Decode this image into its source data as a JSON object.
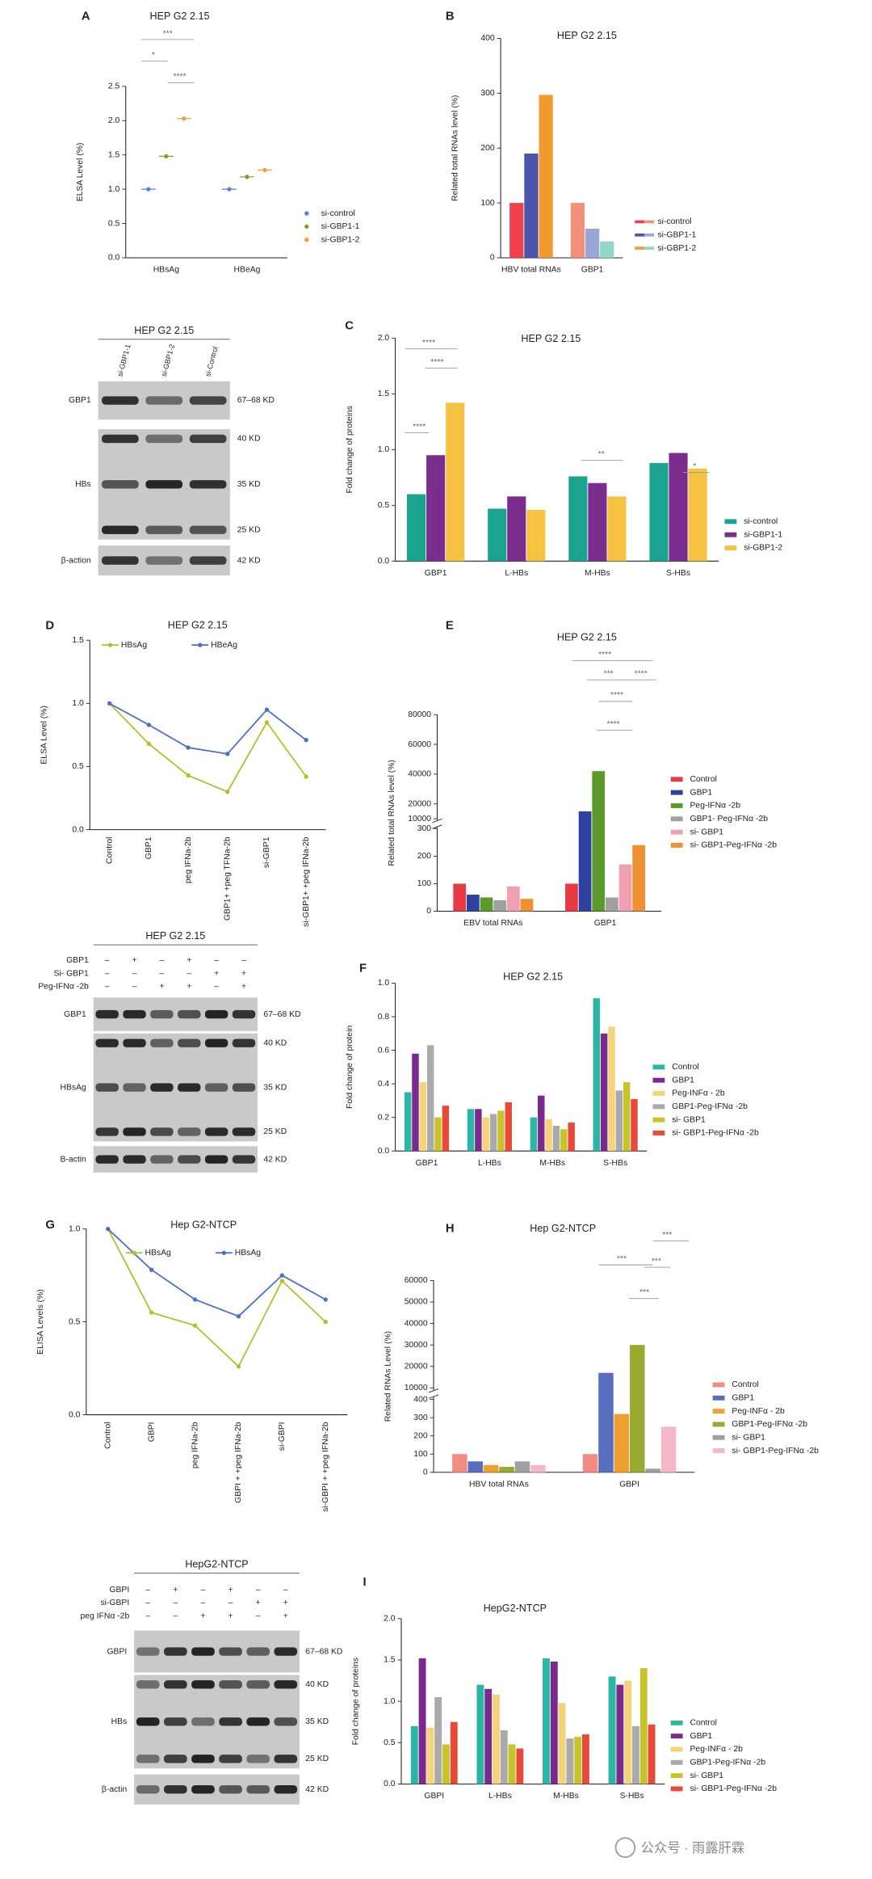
{
  "chart_data": [
    {
      "panel": "A",
      "type": "strip",
      "title": "HEP G2 2.15",
      "ylabel": "ELSA Level (%)",
      "categories": [
        "HBsAg",
        "HBeAg"
      ],
      "series": [
        {
          "name": "si-control",
          "color": "#5b7fd6",
          "values": [
            1.0,
            1.0
          ]
        },
        {
          "name": "si-GBP1-1",
          "color": "#8a9a2a",
          "values": [
            1.48,
            1.18
          ]
        },
        {
          "name": "si-GBP1-2",
          "color": "#f0a040",
          "values": [
            2.03,
            1.28
          ]
        }
      ],
      "ylim": [
        0,
        2.5
      ],
      "yticks": [
        {
          "value": 0,
          "label": "0.0"
        },
        0.5,
        {
          "value": 1,
          "label": "1.0"
        },
        1.5,
        {
          "value": 2,
          "label": "2.0"
        },
        2.5
      ],
      "annotations": [
        "***",
        "*",
        "****"
      ]
    },
    {
      "panel": "B",
      "type": "bar",
      "title": "HEP G2 2.15",
      "ylabel": "Related total RNAs level (%)",
      "categories": [
        "HBV total RNAs",
        "GBP1"
      ],
      "series": [
        {
          "name": "si-control",
          "colors": [
            "#f0404a",
            "#f4907a"
          ],
          "values": [
            100,
            100
          ]
        },
        {
          "name": "si-GBP1-1",
          "colors": [
            "#4a55a8",
            "#9aa6d8"
          ],
          "values": [
            190,
            53
          ]
        },
        {
          "name": "si-GBP1-2",
          "colors": [
            "#f29a30",
            "#8fd8c8"
          ],
          "values": [
            297,
            30
          ]
        }
      ],
      "ylim": [
        0,
        400
      ],
      "yticks": [
        0,
        100,
        200,
        300,
        400
      ]
    },
    {
      "panel": "C",
      "type": "bar",
      "title": "HEP G2 2.15",
      "ylabel": "Fold change of proteins",
      "categories": [
        "GBP1",
        "L-HBs",
        "M-HBs",
        "S-HBs"
      ],
      "series": [
        {
          "name": "si-control",
          "color": "#1aa38f",
          "values": [
            0.6,
            0.47,
            0.76,
            0.88
          ]
        },
        {
          "name": "si-GBP1-1",
          "color": "#7b2d8e",
          "values": [
            0.95,
            0.58,
            0.7,
            0.97
          ]
        },
        {
          "name": "si-GBP1-2",
          "color": "#f5c242",
          "values": [
            1.42,
            0.46,
            0.58,
            0.83
          ]
        }
      ],
      "ylim": [
        0,
        2
      ],
      "yticks": [
        {
          "value": 0,
          "label": "0.0"
        },
        0.5,
        {
          "value": 1,
          "label": "1.0"
        },
        1.5,
        {
          "value": 2,
          "label": "2.0"
        }
      ],
      "annotations": [
        "****",
        "****",
        "****",
        "**",
        "*"
      ]
    },
    {
      "panel": "D",
      "type": "line",
      "title": "HEP G2 2.15",
      "ylabel": "ELSA Level (%)",
      "x_label_rotation": 90,
      "categories": [
        "Control",
        "GBP1",
        "peg IFNa-2b",
        "GBP1+ +peg TFNa-2b",
        "si-GBP1",
        "si-GBP1+ +peg IFNa-2b"
      ],
      "series": [
        {
          "name": "HBsAg",
          "color": "#b5bf2a",
          "values": [
            1.0,
            0.68,
            0.43,
            0.3,
            0.85,
            0.42
          ]
        },
        {
          "name": "HBeAg",
          "color": "#4a6fc8",
          "values": [
            1.0,
            0.83,
            0.65,
            0.6,
            0.95,
            0.71
          ]
        }
      ],
      "ylim": [
        0,
        1.5
      ],
      "yticks": [
        {
          "value": 0,
          "label": "0.0"
        },
        0.5,
        {
          "value": 1,
          "label": "1.0"
        },
        1.5
      ]
    },
    {
      "panel": "E",
      "type": "bar",
      "title": "HEP G2 2.15",
      "ylabel": "Related total RNAs level (%)",
      "categories": [
        "EBV total RNAs",
        "GBP1"
      ],
      "series": [
        {
          "name": "Control",
          "color": "#e83a44",
          "values": [
            100,
            100
          ]
        },
        {
          "name": "GBP1",
          "color": "#3040a0",
          "values": [
            60,
            15000
          ]
        },
        {
          "name": "Peg-IFNα -2b",
          "color": "#5a9a2a",
          "values": [
            50,
            42000
          ]
        },
        {
          "name": "GBP1- Peg-IFNα -2b",
          "color": "#a0a0a0",
          "values": [
            40,
            50
          ]
        },
        {
          "name": "si- GBP1",
          "color": "#f0a0b0",
          "values": [
            90,
            170
          ]
        },
        {
          "name": "si- GBP1-Peg-IFNα -2b",
          "color": "#f09030",
          "values": [
            45,
            240
          ]
        }
      ],
      "ylims": [
        [
          0,
          300
        ],
        [
          10000,
          80000
        ]
      ],
      "yticks": [
        0,
        100,
        200,
        300,
        10000,
        20000,
        40000,
        60000,
        80000
      ],
      "annotations": [
        "****",
        "***",
        "****",
        "****",
        "****"
      ]
    },
    {
      "panel": "F",
      "type": "bar",
      "title": "HEP G2 2.15",
      "ylabel": "Fold change of protein",
      "categories": [
        "GBP1",
        "L-HBs",
        "M-HBs",
        "S-HBs"
      ],
      "series": [
        {
          "name": "Control",
          "color": "#2ab5a5",
          "values": [
            0.35,
            0.25,
            0.2,
            0.91
          ]
        },
        {
          "name": "GBP1",
          "color": "#7a2a8e",
          "values": [
            0.58,
            0.25,
            0.33,
            0.7
          ]
        },
        {
          "name": "Peg-INFα - 2b",
          "color": "#f5d37a",
          "values": [
            0.41,
            0.2,
            0.19,
            0.74
          ]
        },
        {
          "name": "GBP1-Peg-IFNα -2b",
          "color": "#aaaaaa",
          "values": [
            0.63,
            0.22,
            0.15,
            0.36
          ]
        },
        {
          "name": "si- GBP1",
          "color": "#c6c42a",
          "values": [
            0.2,
            0.24,
            0.13,
            0.41
          ]
        },
        {
          "name": "si- GBP1-Peg-IFNα -2b",
          "color": "#e84a3a",
          "values": [
            0.27,
            0.29,
            0.17,
            0.31
          ]
        }
      ],
      "ylim": [
        0,
        1
      ],
      "yticks": [
        {
          "value": 0,
          "label": "0.0"
        },
        0.2,
        0.4,
        0.6,
        0.8,
        {
          "value": 1,
          "label": "1.0"
        }
      ]
    },
    {
      "panel": "G",
      "type": "line",
      "title": "Hep G2-NTCP",
      "ylabel": "ELISA Levels (%)",
      "x_label_rotation": 90,
      "categories": [
        "Control",
        "GBPI",
        "peg IFNa-2b",
        "GBPI + +peg IFNa-2b",
        "si-GBPI",
        "si-GBPI + +peg IFNa-2b"
      ],
      "series": [
        {
          "name": "HBsAg",
          "color": "#b5bf2a",
          "values": [
            1.0,
            0.55,
            0.48,
            0.26,
            0.72,
            0.5
          ]
        },
        {
          "name": "HBsAg",
          "color": "#4a6fc8",
          "values": [
            1.0,
            0.78,
            0.62,
            0.53,
            0.75,
            0.62
          ]
        }
      ],
      "ylim": [
        0,
        1
      ],
      "yticks": [
        {
          "value": 0,
          "label": "0.0"
        },
        0.5,
        {
          "value": 1,
          "label": "1.0"
        }
      ]
    },
    {
      "panel": "H",
      "type": "bar",
      "title": "Hep G2-NTCP",
      "ylabel": "Related RNAs Level (%)",
      "categories": [
        "HBV total RNAs",
        "GBPI"
      ],
      "series": [
        {
          "name": "Control",
          "color": "#f28b82",
          "values": [
            100,
            100
          ]
        },
        {
          "name": "GBP1",
          "color": "#5a6ec0",
          "values": [
            60,
            17000
          ]
        },
        {
          "name": "Peg-INFα - 2b",
          "color": "#f0a030",
          "values": [
            40,
            320
          ]
        },
        {
          "name": "GBP1-Peg-IFNα -2b",
          "color": "#9aaa30",
          "values": [
            30,
            30000
          ]
        },
        {
          "name": "si- GBP1",
          "color": "#a0a0a0",
          "values": [
            60,
            20
          ]
        },
        {
          "name": "si- GBP1-Peg-IFNα -2b",
          "color": "#f5b8c8",
          "values": [
            40,
            250
          ]
        }
      ],
      "ylims": [
        [
          0,
          400
        ],
        [
          10000,
          60000
        ]
      ],
      "yticks": [
        0,
        100,
        200,
        300,
        400,
        10000,
        20000,
        30000,
        40000,
        50000,
        60000
      ],
      "annotations": [
        "***",
        "***",
        "***",
        "***"
      ]
    },
    {
      "panel": "I",
      "type": "bar",
      "title": "HepG2-NTCP",
      "ylabel": "Fold change of proteins",
      "categories": [
        "GBPI",
        "L-HBs",
        "M-HBs",
        "S-HBs"
      ],
      "series": [
        {
          "name": "Control",
          "color": "#2ab5a5",
          "values": [
            0.7,
            1.2,
            1.52,
            1.3
          ]
        },
        {
          "name": "GBP1",
          "color": "#7a2a8e",
          "values": [
            1.52,
            1.15,
            1.48,
            1.2
          ]
        },
        {
          "name": "Peg-INFα - 2b",
          "color": "#f5d37a",
          "values": [
            0.68,
            1.08,
            0.98,
            1.25
          ]
        },
        {
          "name": "GBP1-Peg-IFNα -2b",
          "color": "#aaaaaa",
          "values": [
            1.05,
            0.65,
            0.55,
            0.7
          ]
        },
        {
          "name": "si- GBP1",
          "color": "#c6c42a",
          "values": [
            0.48,
            0.48,
            0.57,
            1.4
          ]
        },
        {
          "name": "si- GBP1-Peg-IFNα -2b",
          "color": "#e84a3a",
          "values": [
            0.75,
            0.43,
            0.6,
            0.72
          ]
        }
      ],
      "ylim": [
        0,
        2
      ],
      "yticks": [
        {
          "value": 0,
          "label": "0.0"
        },
        0.5,
        {
          "value": 1,
          "label": "1.0"
        },
        1.5,
        {
          "value": 2,
          "label": "2.0"
        }
      ]
    }
  ],
  "blots": [
    {
      "title": "HEP G2 2.15",
      "lanes": [
        "si-GBP1-1",
        "si-GBP1-2",
        "si-Control"
      ],
      "rows": [
        {
          "label": "GBP1",
          "markers": [
            "67–68 KD"
          ]
        },
        {
          "label": "HBs",
          "markers": [
            "40 KD",
            "35 KD",
            "25 KD"
          ]
        },
        {
          "label": "β-action",
          "markers": [
            "42 KD"
          ]
        }
      ]
    },
    {
      "title": "HEP G2 2.15",
      "conditions": [
        {
          "label": "GBP1",
          "signs": [
            "–",
            "+",
            "–",
            "+",
            "–",
            "–"
          ]
        },
        {
          "label": "Si- GBP1",
          "signs": [
            "–",
            "–",
            "–",
            "–",
            "+",
            "+"
          ]
        },
        {
          "label": "Peg-IFNα -2b",
          "signs": [
            "–",
            "–",
            "+",
            "+",
            "–",
            "+"
          ]
        }
      ],
      "rows": [
        {
          "label": "GBP1",
          "markers": [
            "67–68 KD"
          ]
        },
        {
          "label": "HBsAg",
          "markers": [
            "40 KD",
            "35 KD",
            "25 KD"
          ]
        },
        {
          "label": "B-actin",
          "markers": [
            "42 KD"
          ]
        }
      ]
    },
    {
      "title": "HepG2-NTCP",
      "conditions": [
        {
          "label": "GBPI",
          "signs": [
            "–",
            "+",
            "–",
            "+",
            "–",
            "–"
          ]
        },
        {
          "label": "si-GBPI",
          "signs": [
            "–",
            "–",
            "–",
            "–",
            "+",
            "+"
          ]
        },
        {
          "label": "peg IFNα -2b",
          "signs": [
            "–",
            "–",
            "+",
            "+",
            "–",
            "+"
          ]
        }
      ],
      "rows": [
        {
          "label": "GBPI",
          "markers": [
            "67–68 KD"
          ]
        },
        {
          "label": "HBs",
          "markers": [
            "40 KD",
            "35 KD",
            "25 KD"
          ]
        },
        {
          "label": "β-actin",
          "markers": [
            "42 KD"
          ]
        }
      ]
    }
  ],
  "watermark": "公众号 · 雨露肝霖"
}
